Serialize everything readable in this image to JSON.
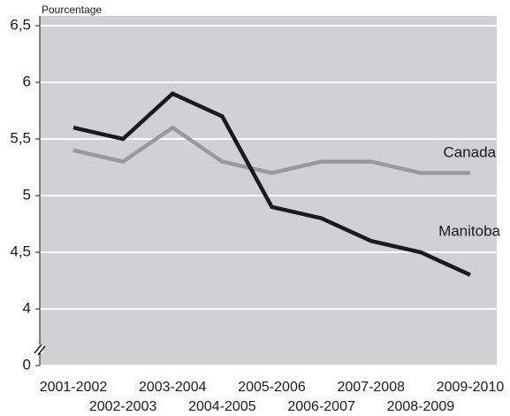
{
  "chart_data": {
    "type": "line",
    "y_label": "Pourcentage",
    "categories": [
      "2001-2002",
      "2002-2003",
      "2003-2004",
      "2004-2005",
      "2005-2006",
      "2006-2007",
      "2007-2008",
      "2008-2009",
      "2009-2010"
    ],
    "series": [
      {
        "name": "Manitoba",
        "color": "#1a1a1a",
        "values": [
          5.6,
          5.5,
          5.9,
          5.7,
          4.9,
          4.8,
          4.6,
          4.5,
          4.3
        ]
      },
      {
        "name": "Canada",
        "color": "#999999",
        "values": [
          5.4,
          5.3,
          5.6,
          5.3,
          5.2,
          5.3,
          5.3,
          5.2,
          5.2
        ]
      }
    ],
    "ylim": [
      0,
      6.5
    ],
    "y_break": [
      0,
      3.5
    ],
    "yticks": [
      0,
      4,
      {
        "value": 4.5,
        "label": "4,5"
      },
      5,
      {
        "value": 5.5,
        "label": "5,5"
      },
      6,
      {
        "value": 6.5,
        "label": "6,5"
      }
    ],
    "grid": true,
    "background": "#d1d1d3"
  }
}
